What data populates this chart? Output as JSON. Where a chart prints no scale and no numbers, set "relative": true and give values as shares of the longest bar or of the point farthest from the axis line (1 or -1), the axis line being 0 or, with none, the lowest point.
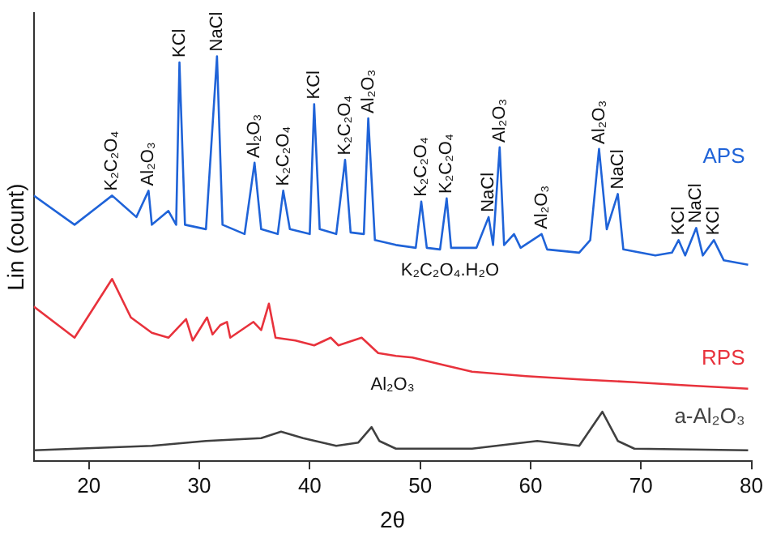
{
  "chart_data": {
    "type": "line",
    "relative": true,
    "xlabel": "2θ",
    "ylabel": "Lin (count)",
    "xlim": [
      15,
      80
    ],
    "xticks": [
      20,
      30,
      40,
      50,
      60,
      70,
      80
    ],
    "tick_labels": "x",
    "grid": false,
    "legend": false,
    "marker": "none",
    "line_style": "solid",
    "series": [
      {
        "name": "APS",
        "color": "#1f63d8",
        "x": [
          15.0,
          18.7,
          22.1,
          24.3,
          25.4,
          25.7,
          27.2,
          27.9,
          28.2,
          28.7,
          30.6,
          31.6,
          32.1,
          34.1,
          35.0,
          35.6,
          37.1,
          37.6,
          38.2,
          40.0,
          40.4,
          40.9,
          42.4,
          43.2,
          43.7,
          44.9,
          45.3,
          45.9,
          47.8,
          49.6,
          50.1,
          50.6,
          51.8,
          52.4,
          52.8,
          55.1,
          56.2,
          56.6,
          57.2,
          57.6,
          58.5,
          59.1,
          61.0,
          61.5,
          64.4,
          65.4,
          66.2,
          66.9,
          67.9,
          68.4,
          71.3,
          72.8,
          73.4,
          74.0,
          75.0,
          75.6,
          76.6,
          77.5,
          79.7
        ],
        "values": [
          0.656,
          0.584,
          0.656,
          0.603,
          0.668,
          0.584,
          0.618,
          0.584,
          0.985,
          0.584,
          0.573,
          1.0,
          0.584,
          0.561,
          0.737,
          0.573,
          0.561,
          0.668,
          0.573,
          0.561,
          0.882,
          0.573,
          0.561,
          0.744,
          0.565,
          0.561,
          0.847,
          0.546,
          0.534,
          0.527,
          0.641,
          0.527,
          0.523,
          0.649,
          0.527,
          0.527,
          0.603,
          0.534,
          0.775,
          0.534,
          0.561,
          0.527,
          0.561,
          0.523,
          0.515,
          0.546,
          0.771,
          0.573,
          0.66,
          0.523,
          0.508,
          0.515,
          0.546,
          0.508,
          0.576,
          0.508,
          0.546,
          0.496,
          0.485
        ]
      },
      {
        "name": "RPS",
        "color": "#e8323c",
        "x": [
          15.0,
          18.7,
          22.1,
          23.8,
          25.7,
          27.2,
          28.8,
          29.4,
          30.7,
          31.2,
          31.9,
          32.5,
          32.8,
          34.9,
          35.6,
          36.3,
          36.9,
          38.7,
          40.4,
          41.9,
          42.6,
          44.7,
          46.2,
          47.8,
          49.3,
          52.2,
          54.7,
          59.6,
          64.4,
          69.4,
          74.3,
          79.7
        ],
        "values": [
          0.382,
          0.305,
          0.45,
          0.355,
          0.317,
          0.305,
          0.351,
          0.298,
          0.355,
          0.313,
          0.336,
          0.344,
          0.305,
          0.344,
          0.324,
          0.389,
          0.305,
          0.298,
          0.286,
          0.305,
          0.286,
          0.305,
          0.267,
          0.26,
          0.256,
          0.237,
          0.221,
          0.21,
          0.202,
          0.195,
          0.187,
          0.179
        ]
      },
      {
        "name": "a-Al₂O₃",
        "color": "#404040",
        "x": [
          15.0,
          25.7,
          30.6,
          35.6,
          37.4,
          39.4,
          42.4,
          44.4,
          45.6,
          46.3,
          47.8,
          54.7,
          60.6,
          64.4,
          66.5,
          67.9,
          69.4,
          79.7
        ],
        "values": [
          0.027,
          0.038,
          0.05,
          0.057,
          0.073,
          0.057,
          0.038,
          0.046,
          0.084,
          0.05,
          0.031,
          0.031,
          0.05,
          0.038,
          0.122,
          0.05,
          0.031,
          0.027
        ]
      }
    ],
    "annotations": [
      {
        "text": "K₂C₂O₄",
        "x": 22.1,
        "y": 0.656
      },
      {
        "text": "Al₂O₃",
        "x": 25.4,
        "y": 0.668
      },
      {
        "text": "KCl",
        "x": 28.2,
        "y": 0.985
      },
      {
        "text": "NaCl",
        "x": 31.6,
        "y": 1.0
      },
      {
        "text": "Al₂O₃",
        "x": 35.0,
        "y": 0.737
      },
      {
        "text": "K₂C₂O₄",
        "x": 37.6,
        "y": 0.668
      },
      {
        "text": "KCl",
        "x": 40.4,
        "y": 0.882
      },
      {
        "text": "K₂C₂O₄",
        "x": 43.2,
        "y": 0.744
      },
      {
        "text": "Al₂O₃",
        "x": 45.3,
        "y": 0.847
      },
      {
        "text": "K₂C₂O₄",
        "x": 50.1,
        "y": 0.641
      },
      {
        "text": "K₂C₂O₄",
        "x": 52.4,
        "y": 0.649
      },
      {
        "text": "NaCl",
        "x": 56.2,
        "y": 0.603
      },
      {
        "text": "Al₂O₃",
        "x": 57.2,
        "y": 0.775
      },
      {
        "text": "Al₂O₃",
        "x": 61.0,
        "y": 0.561
      },
      {
        "text": "Al₂O₃",
        "x": 66.2,
        "y": 0.771
      },
      {
        "text": "NaCl",
        "x": 67.9,
        "y": 0.66
      },
      {
        "text": "KCl",
        "x": 73.4,
        "y": 0.546
      },
      {
        "text": "NaCl",
        "x": 75.0,
        "y": 0.576
      },
      {
        "text": "KCl",
        "x": 76.6,
        "y": 0.546
      },
      "K₂C₂O₄.H₂O",
      "Al₂O₃"
    ]
  }
}
